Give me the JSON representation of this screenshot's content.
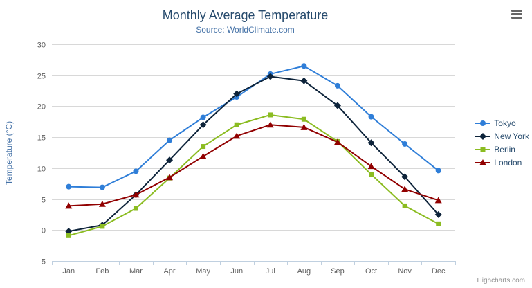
{
  "chart_data": {
    "type": "line",
    "title": "Monthly Average Temperature",
    "subtitle": "Source: WorldClimate.com",
    "xlabel": "",
    "ylabel": "Temperature (°C)",
    "categories": [
      "Jan",
      "Feb",
      "Mar",
      "Apr",
      "May",
      "Jun",
      "Jul",
      "Aug",
      "Sep",
      "Oct",
      "Nov",
      "Dec"
    ],
    "ylim": [
      -5,
      30
    ],
    "ytick_step": 5,
    "grid": true,
    "legend_position": "right",
    "series": [
      {
        "name": "Tokyo",
        "color": "#2f7ed8",
        "marker": "circle",
        "values": [
          7.0,
          6.9,
          9.5,
          14.5,
          18.2,
          21.5,
          25.2,
          26.5,
          23.3,
          18.3,
          13.9,
          9.6
        ]
      },
      {
        "name": "New York",
        "color": "#0d233a",
        "marker": "diamond",
        "values": [
          -0.2,
          0.8,
          5.7,
          11.3,
          17.0,
          22.0,
          24.8,
          24.1,
          20.1,
          14.1,
          8.6,
          2.5
        ]
      },
      {
        "name": "Berlin",
        "color": "#8bbc21",
        "marker": "square",
        "values": [
          -0.9,
          0.6,
          3.5,
          8.4,
          13.5,
          17.0,
          18.6,
          17.9,
          14.3,
          9.0,
          3.9,
          1.0
        ]
      },
      {
        "name": "London",
        "color": "#910000",
        "marker": "triangle",
        "values": [
          3.9,
          4.2,
          5.7,
          8.5,
          11.9,
          15.2,
          17.0,
          16.6,
          14.2,
          10.3,
          6.6,
          4.8
        ]
      }
    ],
    "colors": {
      "title": "#274b6d",
      "subtitle": "#4572a7",
      "axis_label": "#606060",
      "grid_line": "#d8d8d8",
      "axis_line": "#c0d0e0",
      "legend_text": "#274b6d"
    }
  },
  "credits": "Highcharts.com"
}
